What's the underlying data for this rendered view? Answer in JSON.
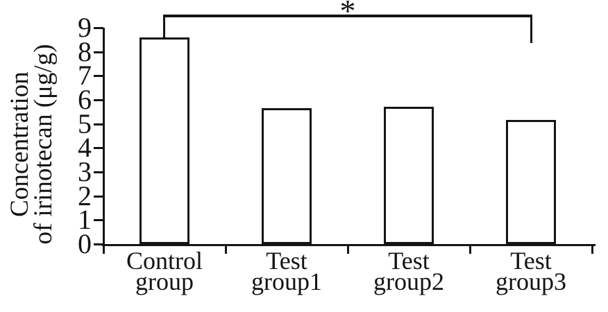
{
  "figure": {
    "background": "#ffffff",
    "ink_color": "#141414"
  },
  "chart_data": {
    "type": "bar",
    "title": "",
    "categories": [
      "Control group",
      "Test group1",
      "Test group2",
      "Test group3"
    ],
    "category_label_lines": [
      [
        "Control",
        "group"
      ],
      [
        "Test",
        "group1"
      ],
      [
        "Test",
        "group2"
      ],
      [
        "Test",
        "group3"
      ]
    ],
    "values": [
      8.6,
      5.65,
      5.7,
      5.15
    ],
    "ylabel": "Concentration of irinotecan (μg/g)",
    "ylabel_lines": [
      "Concentration",
      "of irinotecan (μg/g)"
    ],
    "xlabel": "",
    "ylim": [
      0,
      9
    ],
    "ytick_step": 1,
    "ytick_labels": [
      "0",
      "1",
      "2",
      "3",
      "4",
      "5",
      "6",
      "7",
      "8",
      "9"
    ],
    "bar_fill": "#ffffff",
    "bar_border": "#141414",
    "grid": false,
    "legend": false,
    "significance": {
      "symbol": "*",
      "from_category": "Control group",
      "to_category": "Test group3",
      "from_index": 0,
      "to_index": 3
    }
  }
}
